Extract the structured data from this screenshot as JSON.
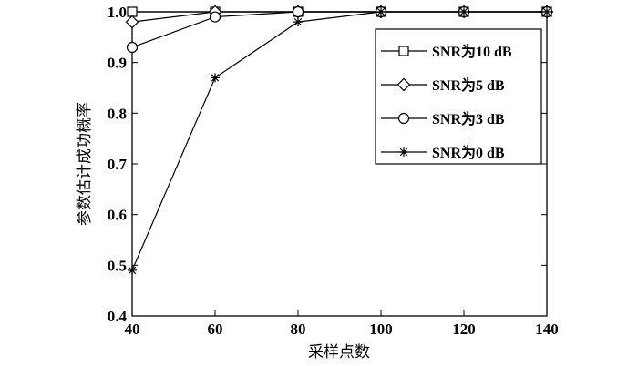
{
  "chart_data": {
    "type": "line",
    "title": "",
    "xlabel": "采样点数",
    "ylabel": "参数估计成功概率",
    "xlim": [
      40,
      140
    ],
    "ylim": [
      0.4,
      1.0
    ],
    "xticks": [
      40,
      60,
      80,
      100,
      120,
      140
    ],
    "yticks": [
      0.4,
      0.5,
      0.6,
      0.7,
      0.8,
      0.9,
      1.0
    ],
    "ytick_labels": [
      "0.4",
      "0.5",
      "0.6",
      "0.7",
      "0.8",
      "0.9",
      "1.0"
    ],
    "grid": false,
    "legend_position": "right",
    "x": [
      40,
      60,
      80,
      100,
      120,
      140
    ],
    "series": [
      {
        "name": "SNR为10 dB",
        "marker": "square",
        "values": [
          1.0,
          1.0,
          1.0,
          1.0,
          1.0,
          1.0
        ]
      },
      {
        "name": "SNR为5 dB",
        "marker": "diamond",
        "values": [
          0.98,
          1.0,
          1.0,
          1.0,
          1.0,
          1.0
        ]
      },
      {
        "name": "SNR为3 dB",
        "marker": "circle",
        "values": [
          0.93,
          0.99,
          1.0,
          1.0,
          1.0,
          1.0
        ]
      },
      {
        "name": "SNR为0 dB",
        "marker": "star",
        "values": [
          0.49,
          0.87,
          0.98,
          1.0,
          1.0,
          1.0
        ]
      }
    ]
  }
}
